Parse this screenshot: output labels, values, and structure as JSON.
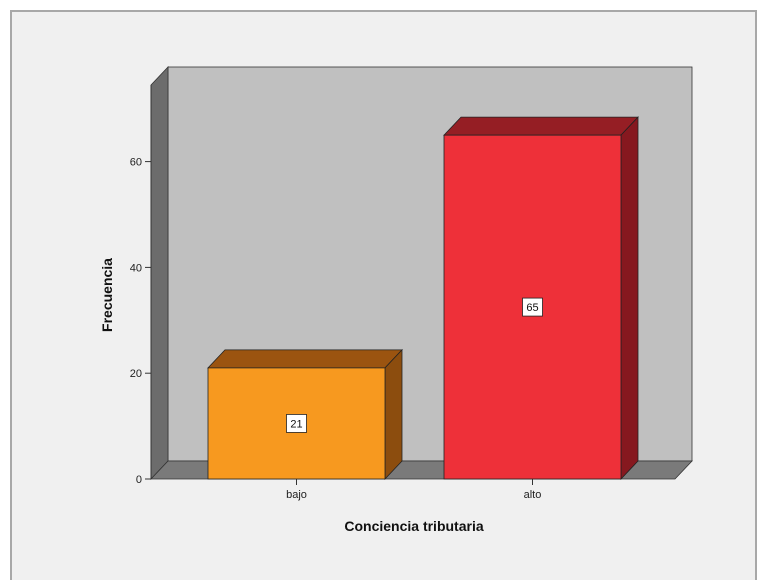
{
  "chart_data": {
    "type": "bar",
    "categories": [
      "bajo",
      "alto"
    ],
    "values": [
      21,
      65
    ],
    "data_labels": [
      "21",
      "65"
    ],
    "xlabel": "Conciencia tributaria",
    "ylabel": "Frecuencia",
    "yticks": [
      "0",
      "20",
      "40",
      "60"
    ],
    "ylim": [
      0,
      77
    ],
    "style": "3d",
    "grid": false,
    "bar_colors": [
      "#f7991f",
      "#ee3039"
    ],
    "bar_top_colors": [
      "#9b5410",
      "#951e24"
    ],
    "bar_side_colors": [
      "#8c4d0e",
      "#86181f"
    ],
    "wall_color": "#c0c0c0",
    "wall_side_color": "#6c6c6c",
    "floor_color": "#7a7a7a"
  }
}
